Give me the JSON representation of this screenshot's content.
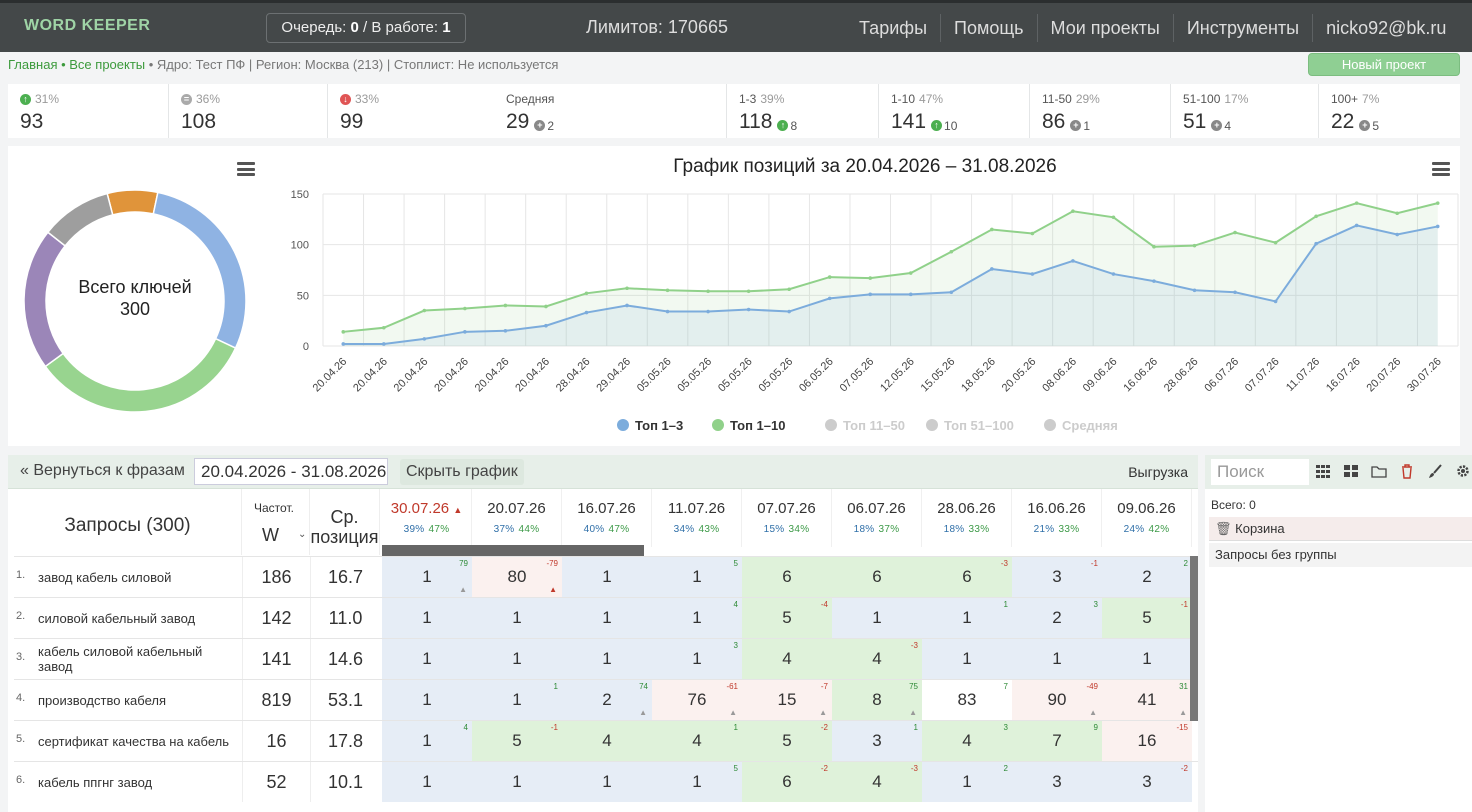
{
  "header": {
    "logo": "WORD KEEPER",
    "queue_label": "Очередь:",
    "queue_value": "0",
    "work_label": "/ В работе:",
    "work_value": "1",
    "limits": "Лимитов: 170665",
    "nav": [
      "Тарифы",
      "Помощь",
      "Мои проекты",
      "Инструменты",
      "nicko92@bk.ru"
    ]
  },
  "breadcrumb": {
    "home": "Главная",
    "sep": " • ",
    "projects": "Все проекты",
    "info": " • Ядро: Тест ПФ | Регион: Москва (213) | Стоплист: Не используется"
  },
  "new_project_button": "Новый проект",
  "stats": [
    {
      "icon": "up",
      "pct": "31%",
      "label": "",
      "value": "93",
      "sub": ""
    },
    {
      "icon": "eq",
      "pct": "36%",
      "label": "",
      "value": "108",
      "sub": ""
    },
    {
      "icon": "dn",
      "pct": "33%",
      "label": "",
      "value": "99",
      "sub": ""
    },
    {
      "icon": "",
      "pct": "",
      "label": "Средняя",
      "value": "29",
      "sub_icon": "grey",
      "sub": "2"
    },
    {
      "icon": "",
      "pct": "39%",
      "label": "1-3",
      "value": "118",
      "sub_icon": "up",
      "sub": "8"
    },
    {
      "icon": "",
      "pct": "47%",
      "label": "1-10",
      "value": "141",
      "sub_icon": "up",
      "sub": "10"
    },
    {
      "icon": "",
      "pct": "29%",
      "label": "11-50",
      "value": "86",
      "sub_icon": "grey",
      "sub": "1"
    },
    {
      "icon": "",
      "pct": "17%",
      "label": "51-100",
      "value": "51",
      "sub_icon": "grey",
      "sub": "4"
    },
    {
      "icon": "",
      "pct": "7%",
      "label": "100+",
      "value": "22",
      "sub_icon": "grey",
      "sub": "5"
    }
  ],
  "donut": {
    "center_line1": "Всего ключей",
    "center_line2": "300",
    "slices": [
      {
        "value": 22,
        "color": "#e0943a"
      },
      {
        "value": 86,
        "color": "#8fb3e3"
      },
      {
        "value": 99,
        "color": "#98d48f"
      },
      {
        "value": 62,
        "color": "#9b86b8"
      },
      {
        "value": 31,
        "color": "#9e9e9e"
      }
    ]
  },
  "chart_data": {
    "type": "area",
    "title": "График позиций за 20.04.2026 – 31.08.2026",
    "x": [
      "20.04.26",
      "20.04.26",
      "20.04.26",
      "20.04.26",
      "20.04.26",
      "20.04.26",
      "28.04.26",
      "29.04.26",
      "05.05.26",
      "05.05.26",
      "05.05.26",
      "05.05.26",
      "06.05.26",
      "07.05.26",
      "12.05.26",
      "15.05.26",
      "18.05.26",
      "20.05.26",
      "08.06.26",
      "09.06.26",
      "16.06.26",
      "28.06.26",
      "06.07.26",
      "07.07.26",
      "11.07.26",
      "16.07.26",
      "20.07.26",
      "30.07.26"
    ],
    "yticks": [
      0,
      50,
      100,
      150
    ],
    "ylim": [
      0,
      150
    ],
    "series": [
      {
        "name": "Топ 1–3",
        "color": "#7cacdc",
        "values": [
          2,
          2,
          7,
          14,
          15,
          20,
          33,
          40,
          34,
          34,
          36,
          34,
          47,
          51,
          51,
          53,
          76,
          71,
          84,
          71,
          64,
          55,
          53,
          44,
          101,
          119,
          110,
          118
        ]
      },
      {
        "name": "Топ 1–10",
        "color": "#90d18a",
        "values": [
          14,
          18,
          35,
          37,
          40,
          39,
          52,
          57,
          55,
          54,
          54,
          56,
          68,
          67,
          72,
          93,
          115,
          111,
          133,
          127,
          98,
          99,
          112,
          102,
          128,
          141,
          131,
          141
        ]
      }
    ],
    "legend": [
      {
        "name": "Топ 1–3",
        "color": "#7cacdc",
        "active": true
      },
      {
        "name": "Топ 1–10",
        "color": "#90d18a",
        "active": true
      },
      {
        "name": "Топ 11–50",
        "color": "#cccccc",
        "active": false
      },
      {
        "name": "Топ 51–100",
        "color": "#cccccc",
        "active": false
      },
      {
        "name": "Средняя",
        "color": "#cccccc",
        "active": false
      }
    ]
  },
  "toolbar": {
    "back": "« Вернуться к фразам",
    "range": "20.04.2026 - 31.08.2026",
    "hide_chart": "Скрыть график",
    "export": "Выгрузка"
  },
  "sidebar": {
    "search_placeholder": "Поиск",
    "total": "Всего: 0",
    "basket": "Корзина",
    "no_group": "Запросы без группы"
  },
  "table": {
    "queries_header": "Запросы (300)",
    "freq_header": "Частот.",
    "freq_sub": "W",
    "pos_header_1": "Ср.",
    "pos_header_2": "позиция",
    "dates": [
      {
        "date": "30.07.26",
        "p1": "39%",
        "p2": "47%",
        "active": true
      },
      {
        "date": "20.07.26",
        "p1": "37%",
        "p2": "44%"
      },
      {
        "date": "16.07.26",
        "p1": "40%",
        "p2": "47%"
      },
      {
        "date": "11.07.26",
        "p1": "34%",
        "p2": "43%"
      },
      {
        "date": "07.07.26",
        "p1": "15%",
        "p2": "34%"
      },
      {
        "date": "06.07.26",
        "p1": "18%",
        "p2": "37%"
      },
      {
        "date": "28.06.26",
        "p1": "18%",
        "p2": "33%"
      },
      {
        "date": "16.06.26",
        "p1": "21%",
        "p2": "33%"
      },
      {
        "date": "09.06.26",
        "p1": "24%",
        "p2": "42%"
      }
    ],
    "rows": [
      {
        "n": "1.",
        "query": "завод кабель силовой",
        "freq": "186",
        "pos": "16.7",
        "cells": [
          {
            "v": "1",
            "c": "blue",
            "d": "79",
            "neg": false,
            "tri": true
          },
          {
            "v": "80",
            "c": "pink",
            "d": "-79",
            "neg": true,
            "tri": true,
            "tri_red": true
          },
          {
            "v": "1",
            "c": "blue",
            "d": ""
          },
          {
            "v": "1",
            "c": "blue",
            "d": "5",
            "neg": false
          },
          {
            "v": "6",
            "c": "green",
            "d": ""
          },
          {
            "v": "6",
            "c": "green",
            "d": ""
          },
          {
            "v": "6",
            "c": "green",
            "d": "-3",
            "neg": true
          },
          {
            "v": "3",
            "c": "blue",
            "d": "-1",
            "neg": true
          },
          {
            "v": "2",
            "c": "blue",
            "d": "2",
            "neg": false
          }
        ]
      },
      {
        "n": "2.",
        "query": "силовой кабельный завод",
        "freq": "142",
        "pos": "11.0",
        "cells": [
          {
            "v": "1",
            "c": "blue",
            "d": ""
          },
          {
            "v": "1",
            "c": "blue",
            "d": ""
          },
          {
            "v": "1",
            "c": "blue",
            "d": ""
          },
          {
            "v": "1",
            "c": "blue",
            "d": "4",
            "neg": false
          },
          {
            "v": "5",
            "c": "green",
            "d": "-4",
            "neg": true
          },
          {
            "v": "1",
            "c": "blue",
            "d": ""
          },
          {
            "v": "1",
            "c": "blue",
            "d": "1",
            "neg": false
          },
          {
            "v": "2",
            "c": "blue",
            "d": "3",
            "neg": false
          },
          {
            "v": "5",
            "c": "green",
            "d": "-1",
            "neg": true
          }
        ]
      },
      {
        "n": "3.",
        "query": "кабель силовой кабельный завод",
        "freq": "141",
        "pos": "14.6",
        "cells": [
          {
            "v": "1",
            "c": "blue",
            "d": ""
          },
          {
            "v": "1",
            "c": "blue",
            "d": ""
          },
          {
            "v": "1",
            "c": "blue",
            "d": ""
          },
          {
            "v": "1",
            "c": "blue",
            "d": "3",
            "neg": false
          },
          {
            "v": "4",
            "c": "green",
            "d": ""
          },
          {
            "v": "4",
            "c": "green",
            "d": "-3",
            "neg": true
          },
          {
            "v": "1",
            "c": "blue",
            "d": ""
          },
          {
            "v": "1",
            "c": "blue",
            "d": ""
          },
          {
            "v": "1",
            "c": "blue",
            "d": ""
          }
        ]
      },
      {
        "n": "4.",
        "query": "производство кабеля",
        "freq": "819",
        "pos": "53.1",
        "cells": [
          {
            "v": "1",
            "c": "blue",
            "d": ""
          },
          {
            "v": "1",
            "c": "blue",
            "d": "1",
            "neg": false
          },
          {
            "v": "2",
            "c": "blue",
            "d": "74",
            "neg": false,
            "tri": true
          },
          {
            "v": "76",
            "c": "pink",
            "d": "-61",
            "neg": true,
            "tri": true
          },
          {
            "v": "15",
            "c": "pink",
            "d": "-7",
            "neg": true,
            "tri": true
          },
          {
            "v": "8",
            "c": "green",
            "d": "75",
            "neg": false,
            "tri": true
          },
          {
            "v": "83",
            "c": "white",
            "d": "7",
            "neg": false
          },
          {
            "v": "90",
            "c": "pink",
            "d": "-49",
            "neg": true,
            "tri": true
          },
          {
            "v": "41",
            "c": "pink",
            "d": "31",
            "neg": false,
            "tri": true
          }
        ]
      },
      {
        "n": "5.",
        "query": "сертификат качества на кабель",
        "freq": "16",
        "pos": "17.8",
        "cells": [
          {
            "v": "1",
            "c": "blue",
            "d": "4",
            "neg": false
          },
          {
            "v": "5",
            "c": "green",
            "d": "-1",
            "neg": true
          },
          {
            "v": "4",
            "c": "green",
            "d": ""
          },
          {
            "v": "4",
            "c": "green",
            "d": "1",
            "neg": false
          },
          {
            "v": "5",
            "c": "green",
            "d": "-2",
            "neg": true
          },
          {
            "v": "3",
            "c": "blue",
            "d": "1",
            "neg": false
          },
          {
            "v": "4",
            "c": "green",
            "d": "3",
            "neg": false
          },
          {
            "v": "7",
            "c": "green",
            "d": "9",
            "neg": false
          },
          {
            "v": "16",
            "c": "pink",
            "d": "-15",
            "neg": true
          }
        ]
      },
      {
        "n": "6.",
        "query": "кабель ппгнг завод",
        "freq": "52",
        "pos": "10.1",
        "cells": [
          {
            "v": "1",
            "c": "blue",
            "d": ""
          },
          {
            "v": "1",
            "c": "blue",
            "d": ""
          },
          {
            "v": "1",
            "c": "blue",
            "d": ""
          },
          {
            "v": "1",
            "c": "blue",
            "d": "5",
            "neg": false
          },
          {
            "v": "6",
            "c": "green",
            "d": "-2",
            "neg": true
          },
          {
            "v": "4",
            "c": "green",
            "d": "-3",
            "neg": true
          },
          {
            "v": "1",
            "c": "blue",
            "d": "2",
            "neg": false
          },
          {
            "v": "3",
            "c": "blue",
            "d": ""
          },
          {
            "v": "3",
            "c": "blue",
            "d": "-2",
            "neg": true
          }
        ]
      }
    ]
  }
}
